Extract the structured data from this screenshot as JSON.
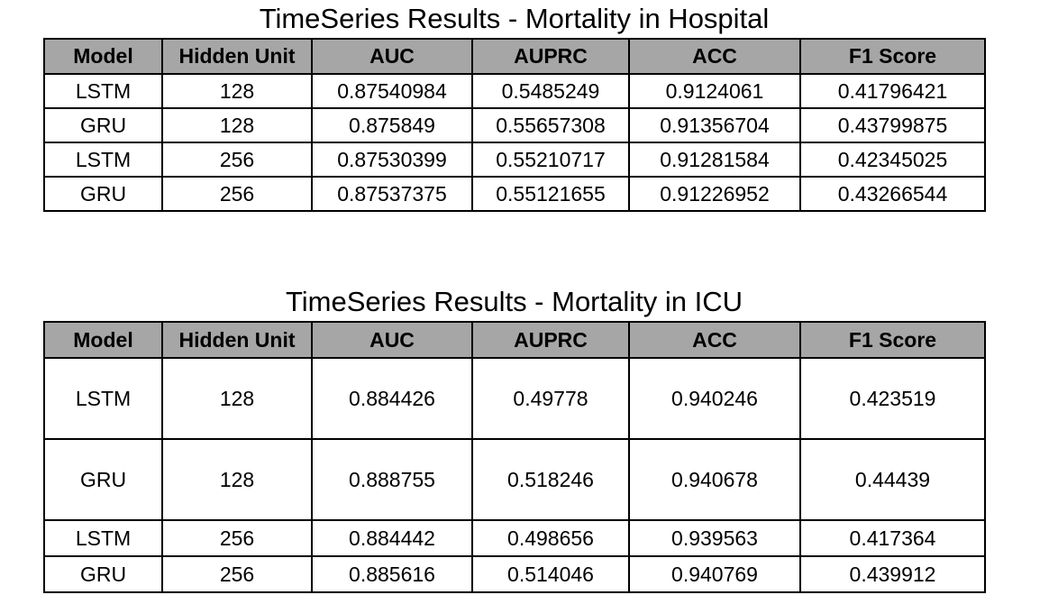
{
  "tables": [
    {
      "title": "TimeSeries Results - Mortality in Hospital",
      "headers": [
        "Model",
        "Hidden Unit",
        "AUC",
        "AUPRC",
        "ACC",
        "F1 Score"
      ],
      "rows": [
        [
          "LSTM",
          "128",
          "0.87540984",
          "0.5485249",
          "0.9124061",
          "0.41796421"
        ],
        [
          "GRU",
          "128",
          "0.875849",
          "0.55657308",
          "0.91356704",
          "0.43799875"
        ],
        [
          "LSTM",
          "256",
          "0.87530399",
          "0.55210717",
          "0.91281584",
          "0.42345025"
        ],
        [
          "GRU",
          "256",
          "0.87537375",
          "0.55121655",
          "0.91226952",
          "0.43266544"
        ]
      ]
    },
    {
      "title": "TimeSeries Results - Mortality in ICU",
      "headers": [
        "Model",
        "Hidden Unit",
        "AUC",
        "AUPRC",
        "ACC",
        "F1 Score"
      ],
      "rows": [
        [
          "LSTM",
          "128",
          "0.884426",
          "0.49778",
          "0.940246",
          "0.423519"
        ],
        [
          "GRU",
          "128",
          "0.888755",
          "0.518246",
          "0.940678",
          "0.44439"
        ],
        [
          "LSTM",
          "256",
          "0.884442",
          "0.498656",
          "0.939563",
          "0.417364"
        ],
        [
          "GRU",
          "256",
          "0.885616",
          "0.514046",
          "0.940769",
          "0.439912"
        ]
      ]
    }
  ]
}
